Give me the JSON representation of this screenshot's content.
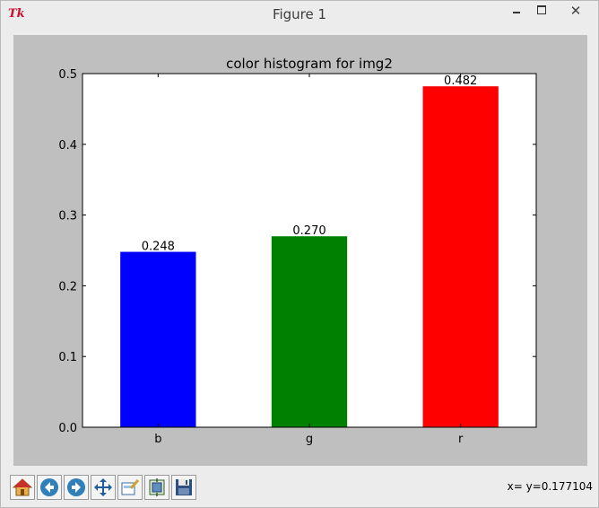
{
  "window": {
    "title": "Figure 1",
    "app_icon_text": "Tk",
    "close_glyph": "✕"
  },
  "toolbar": {
    "tools": [
      {
        "name": "home",
        "icon": "home-icon"
      },
      {
        "name": "back",
        "icon": "back-arrow-icon"
      },
      {
        "name": "forward",
        "icon": "forward-arrow-icon"
      },
      {
        "name": "pan",
        "icon": "pan-arrows-icon"
      },
      {
        "name": "zoom",
        "icon": "zoom-rect-icon"
      },
      {
        "name": "subplots",
        "icon": "subplots-icon"
      },
      {
        "name": "save",
        "icon": "floppy-disk-icon"
      }
    ],
    "coordinate_readout": "x= y=0.177104"
  },
  "colors": {
    "figure_bg": "#bfbfbf",
    "axes_bg": "#ffffff"
  },
  "chart_data": {
    "type": "bar",
    "title": "color histogram for img2",
    "xlabel": "",
    "ylabel": "",
    "categories": [
      "b",
      "g",
      "r"
    ],
    "values": [
      0.248,
      0.27,
      0.482
    ],
    "value_labels": [
      "0.248",
      "0.270",
      "0.482"
    ],
    "bar_colors": [
      "#0000ff",
      "#008000",
      "#ff0000"
    ],
    "ylim": [
      0.0,
      0.5
    ],
    "yticks": [
      0.0,
      0.1,
      0.2,
      0.3,
      0.4,
      0.5
    ],
    "ytick_labels": [
      "0.0",
      "0.1",
      "0.2",
      "0.3",
      "0.4",
      "0.5"
    ],
    "grid": false,
    "legend": "none"
  }
}
